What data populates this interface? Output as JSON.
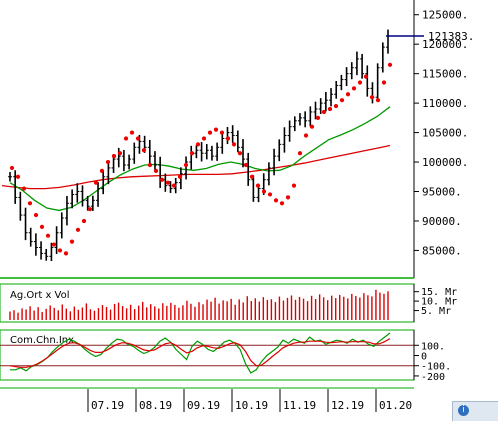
{
  "chart_data": [
    {
      "panel": "price",
      "type": "line",
      "ylim": [
        81000,
        127500
      ],
      "y_ticks": [
        "125000.",
        "120000.",
        "115000.",
        "110000.",
        "105000.",
        "100000.",
        "95000.",
        "90000.",
        "85000."
      ],
      "y_tick_values": [
        125000,
        120000,
        115000,
        110000,
        105000,
        100000,
        95000,
        90000,
        85000
      ],
      "last_price_label": "121383.",
      "last_price": 121383,
      "series": [
        {
          "role": "ohlc-bars",
          "color": "#000000",
          "values": [
            97500,
            94000,
            91000,
            88000,
            86500,
            85500,
            84500,
            84000,
            85500,
            88000,
            90500,
            93000,
            94500,
            95000,
            93500,
            92500,
            93500,
            95500,
            97500,
            99000,
            100500,
            101000,
            99500,
            100500,
            102500,
            103500,
            102500,
            101000,
            99500,
            97000,
            96000,
            95500,
            96500,
            98000,
            100000,
            101500,
            102000,
            101500,
            102000,
            101000,
            102500,
            104000,
            105000,
            104500,
            102500,
            100500,
            97000,
            94000,
            95500,
            97000,
            99000,
            101000,
            103000,
            104500,
            106000,
            107000,
            107500,
            107000,
            108500,
            109000,
            110000,
            110500,
            111500,
            113000,
            114000,
            115000,
            116000,
            117500,
            115000,
            112500,
            111000,
            116000,
            119500,
            121383
          ]
        },
        {
          "role": "sar-dots",
          "color": "#ee0000",
          "values": [
            99000,
            97500,
            95500,
            93000,
            91000,
            89000,
            87500,
            86000,
            85000,
            84500,
            86500,
            88500,
            90000,
            92000,
            96500,
            98500,
            100000,
            101000,
            101500,
            104000,
            105000,
            104000,
            102000,
            99500,
            98500,
            97000,
            96500,
            96000,
            97500,
            99500,
            101500,
            103000,
            104000,
            105000,
            105500,
            105000,
            104000,
            103000,
            101500,
            99500,
            97500,
            96000,
            95000,
            94500,
            93500,
            93000,
            94000,
            96000,
            101500,
            104500,
            106000,
            107500,
            108500,
            109000,
            109500,
            110500,
            111500,
            112500,
            113500,
            114500,
            111000,
            110500,
            113500,
            116500
          ]
        },
        {
          "role": "moving-average-short",
          "color": "#009900",
          "values": [
            96500,
            95200,
            93500,
            92200,
            91800,
            92300,
            93500,
            95000,
            96500,
            97800,
            98800,
            99500,
            99600,
            99300,
            98800,
            98600,
            98900,
            99600,
            100000,
            99600,
            98900,
            98500,
            98600,
            99400,
            101000,
            102400,
            103800,
            104600,
            105500,
            106600,
            107800,
            109400
          ]
        },
        {
          "role": "moving-average-long",
          "color": "#dd0000",
          "values": [
            96000,
            95700,
            95500,
            95500,
            95700,
            96100,
            96600,
            97000,
            97300,
            97500,
            97600,
            97700,
            97800,
            97900,
            97900,
            97900,
            98000,
            98300,
            98600,
            99000,
            99400,
            99800,
            100300,
            100800,
            101300,
            101800,
            102300,
            102800
          ]
        }
      ]
    },
    {
      "panel": "volume",
      "type": "bar",
      "title": "Ag.Ort x Vol",
      "y_ticks": [
        "15. Mr",
        "10. Mr",
        "5. Mr"
      ],
      "y_tick_values": [
        15,
        10,
        5
      ],
      "ylim": [
        0,
        18
      ],
      "series": [
        {
          "role": "volume-bars",
          "color": "#dd0000",
          "values": [
            4.5,
            5.2,
            3.9,
            6.1,
            5.6,
            7.3,
            5.0,
            6.8,
            4.2,
            5.9,
            7.7,
            6.4,
            5.1,
            8.2,
            6.0,
            4.6,
            7.1,
            5.4,
            6.6,
            8.8,
            5.7,
            4.9,
            6.3,
            7.9,
            6.9,
            5.5,
            8.5,
            9.2,
            7.4,
            6.2,
            8.1,
            5.8,
            7.6,
            9.6,
            6.7,
            8.4,
            7.2,
            6.1,
            8.9,
            7.5,
            9.1,
            8.0,
            6.5,
            7.8,
            10.2,
            8.6,
            7.0,
            9.4,
            8.3,
            10.8,
            9.7,
            11.8,
            8.7,
            10.4,
            9.9,
            11.2,
            8.1,
            10.9,
            9.3,
            12.6,
            10.1,
            11.5,
            9.8,
            12.1,
            10.6,
            11.0,
            9.5,
            12.4,
            10.3,
            11.7,
            13.0,
            10.7,
            12.2,
            11.3,
            10.0,
            12.8,
            11.1,
            13.6,
            12.0,
            10.5,
            12.9,
            11.6,
            13.3,
            12.3,
            11.4,
            13.8,
            12.7,
            11.9,
            14.2,
            13.1,
            12.5,
            16.0,
            14.5,
            13.9,
            15.2
          ]
        }
      ]
    },
    {
      "panel": "cci",
      "type": "line",
      "title": "Com.Chn.Inx",
      "y_ticks": [
        "100.",
        "0",
        "-100.",
        "-200"
      ],
      "y_tick_values": [
        100,
        0,
        -100,
        -200
      ],
      "ylim": [
        -230,
        230
      ],
      "reference_lines": [
        100,
        -100
      ],
      "series": [
        {
          "role": "cci",
          "color": "#009900",
          "values": [
            -140,
            -140,
            -120,
            -150,
            -110,
            -90,
            -60,
            -20,
            40,
            90,
            130,
            160,
            140,
            110,
            60,
            20,
            -10,
            10,
            70,
            120,
            160,
            150,
            110,
            90,
            50,
            20,
            40,
            80,
            140,
            170,
            130,
            60,
            10,
            -40,
            90,
            140,
            110,
            60,
            40,
            80,
            130,
            150,
            120,
            60,
            -80,
            -170,
            -140,
            -60,
            0,
            40,
            80,
            150,
            120,
            160,
            140,
            120,
            180,
            140,
            150,
            110,
            130,
            150,
            140,
            120,
            160,
            130,
            150,
            110,
            90,
            140,
            180,
            220
          ]
        },
        {
          "role": "cci-average",
          "color": "#dd0000",
          "values": [
            -100,
            -110,
            -115,
            -115,
            -105,
            -85,
            -55,
            -20,
            20,
            60,
            95,
            120,
            125,
            110,
            80,
            50,
            30,
            30,
            50,
            80,
            110,
            125,
            120,
            105,
            80,
            55,
            45,
            55,
            85,
            115,
            125,
            100,
            60,
            25,
            40,
            75,
            95,
            90,
            75,
            70,
            90,
            115,
            125,
            105,
            40,
            -50,
            -100,
            -95,
            -55,
            -10,
            30,
            75,
            100,
            120,
            130,
            130,
            140,
            140,
            140,
            130,
            125,
            130,
            135,
            130,
            135,
            135,
            135,
            130,
            115,
            115,
            135,
            165
          ]
        }
      ]
    },
    {
      "panel": "time-axis",
      "type": "table",
      "categories": [
        "07.19",
        "08.19",
        "09.19",
        "10.19",
        "11.19",
        "12.19",
        "01.20"
      ]
    }
  ],
  "colors": {
    "bars": "#000000",
    "sar": "#ee0000",
    "ma_short": "#009900",
    "ma_long": "#dd0000",
    "frame": "#00aa00",
    "grid": "#b0b0b0",
    "last_price_line": "#000080"
  },
  "icons": {
    "corner": "info-icon"
  }
}
